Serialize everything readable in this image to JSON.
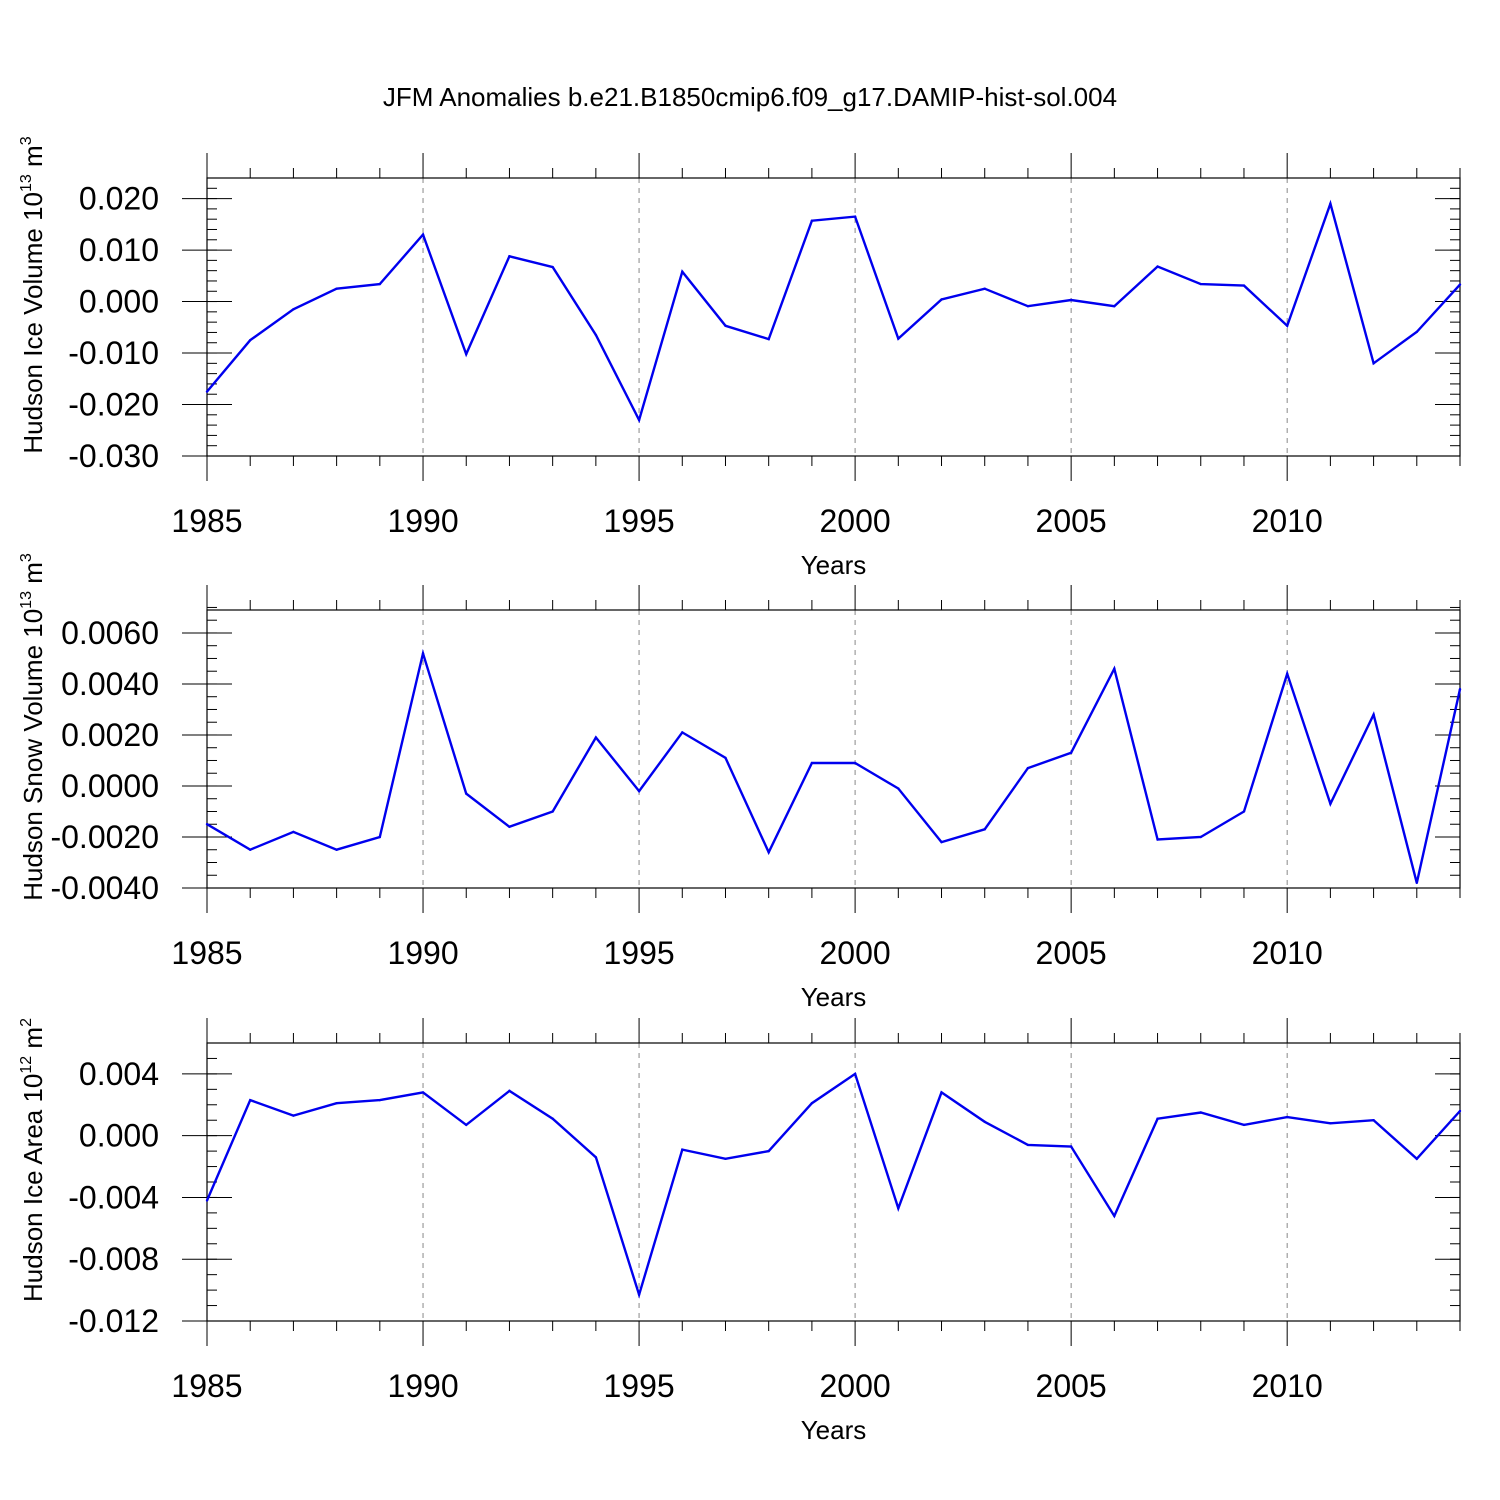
{
  "title": "JFM Anomalies b.e21.B1850cmip6.f09_g17.DAMIP-hist-sol.004",
  "chart_data": [
    {
      "type": "line",
      "ylabel_main": "Hudson Ice Volume 10",
      "ylabel_exp": "13",
      "ylabel_unit": " m",
      "ylabel_unit_exp": "3",
      "xlabel": "Years",
      "xlim": [
        1985,
        2014
      ],
      "ylim": [
        -0.03,
        0.024
      ],
      "yticks": [
        -0.03,
        -0.02,
        -0.01,
        0.0,
        0.01,
        0.02
      ],
      "ytick_labels": [
        "-0.030",
        "-0.020",
        "-0.010",
        "0.000",
        "0.010",
        "0.020"
      ],
      "yminor_step": 0.002,
      "xticks": [
        1985,
        1990,
        1995,
        2000,
        2005,
        2010
      ],
      "xtick_labels": [
        "1985",
        "1990",
        "1995",
        "2000",
        "2005",
        "2010"
      ],
      "grid": "vertical dashed at major x ticks",
      "series_color": "#0000ee",
      "x": [
        1985,
        1986,
        1987,
        1988,
        1989,
        1990,
        1991,
        1992,
        1993,
        1994,
        1995,
        1996,
        1997,
        1998,
        1999,
        2000,
        2001,
        2002,
        2003,
        2004,
        2005,
        2006,
        2007,
        2008,
        2009,
        2010,
        2011,
        2012,
        2013,
        2014
      ],
      "values": [
        -0.0175,
        -0.0075,
        -0.0015,
        0.0025,
        0.0034,
        0.013,
        -0.0102,
        0.0088,
        0.0067,
        -0.0065,
        -0.023,
        0.0058,
        -0.0047,
        -0.0073,
        0.0157,
        0.0165,
        -0.0072,
        0.0004,
        0.0025,
        -0.0009,
        0.0003,
        -0.0009,
        0.0068,
        0.0034,
        0.0031,
        -0.0047,
        0.019,
        -0.012,
        -0.0059,
        0.0033
      ]
    },
    {
      "type": "line",
      "ylabel_main": "Hudson Snow Volume 10",
      "ylabel_exp": "13",
      "ylabel_unit": " m",
      "ylabel_unit_exp": "3",
      "xlabel": "Years",
      "xlim": [
        1985,
        2014
      ],
      "ylim": [
        -0.004,
        0.0069
      ],
      "yticks": [
        -0.004,
        -0.002,
        0.0,
        0.002,
        0.004,
        0.006
      ],
      "ytick_labels": [
        "-0.0040",
        "-0.0020",
        "0.0000",
        "0.0020",
        "0.0040",
        "0.0060"
      ],
      "yminor_step": 0.0005,
      "xticks": [
        1985,
        1990,
        1995,
        2000,
        2005,
        2010
      ],
      "xtick_labels": [
        "1985",
        "1990",
        "1995",
        "2000",
        "2005",
        "2010"
      ],
      "grid": "vertical dashed at major x ticks",
      "series_color": "#0000ee",
      "x": [
        1985,
        1986,
        1987,
        1988,
        1989,
        1990,
        1991,
        1992,
        1993,
        1994,
        1995,
        1996,
        1997,
        1998,
        1999,
        2000,
        2001,
        2002,
        2003,
        2004,
        2005,
        2006,
        2007,
        2008,
        2009,
        2010,
        2011,
        2012,
        2013,
        2014
      ],
      "values": [
        -0.0015,
        -0.0025,
        -0.0018,
        -0.0025,
        -0.002,
        0.0052,
        -0.0003,
        -0.0016,
        -0.001,
        0.0019,
        -0.0002,
        0.0021,
        0.0011,
        -0.0026,
        0.0009,
        0.0009,
        -0.0001,
        -0.0022,
        -0.0017,
        0.0007,
        0.0013,
        0.0046,
        -0.0021,
        -0.002,
        -0.001,
        0.0044,
        -0.0007,
        0.0028,
        -0.0038,
        0.0038
      ]
    },
    {
      "type": "line",
      "ylabel_main": "Hudson Ice Area 10",
      "ylabel_exp": "12",
      "ylabel_unit": " m",
      "ylabel_unit_exp": "2",
      "xlabel": "Years",
      "xlim": [
        1985,
        2014
      ],
      "ylim": [
        -0.012,
        0.006
      ],
      "yticks": [
        -0.012,
        -0.008,
        -0.004,
        0.0,
        0.004
      ],
      "ytick_labels": [
        "-0.012",
        "-0.008",
        "-0.004",
        "0.000",
        "0.004"
      ],
      "yminor_step": 0.001,
      "xticks": [
        1985,
        1990,
        1995,
        2000,
        2005,
        2010
      ],
      "xtick_labels": [
        "1985",
        "1990",
        "1995",
        "2000",
        "2005",
        "2010"
      ],
      "grid": "vertical dashed at major x ticks",
      "series_color": "#0000ee",
      "x": [
        1985,
        1986,
        1987,
        1988,
        1989,
        1990,
        1991,
        1992,
        1993,
        1994,
        1995,
        1996,
        1997,
        1998,
        1999,
        2000,
        2001,
        2002,
        2003,
        2004,
        2005,
        2006,
        2007,
        2008,
        2009,
        2010,
        2011,
        2012,
        2013,
        2014
      ],
      "values": [
        -0.0042,
        0.0023,
        0.0013,
        0.0021,
        0.0023,
        0.0028,
        0.0007,
        0.0029,
        0.0011,
        -0.0014,
        -0.0103,
        -0.0009,
        -0.0015,
        -0.001,
        0.0021,
        0.004,
        -0.0047,
        0.0028,
        0.0009,
        -0.0006,
        -0.0007,
        -0.0052,
        0.0011,
        0.0015,
        0.0007,
        0.0012,
        0.0008,
        0.001,
        -0.0015,
        0.0016
      ]
    }
  ]
}
